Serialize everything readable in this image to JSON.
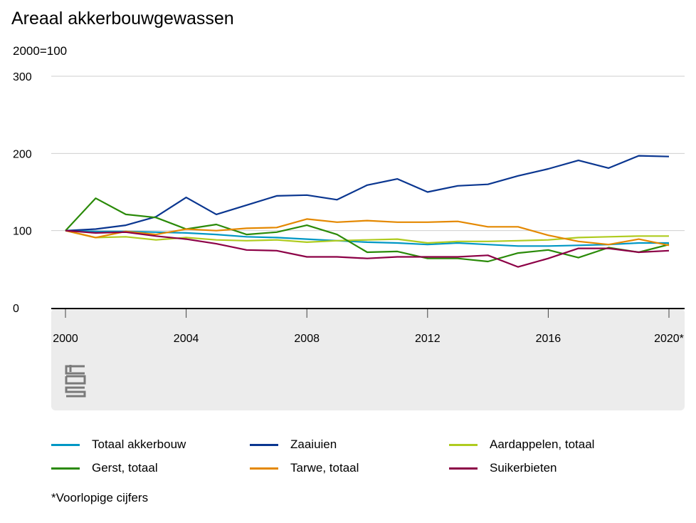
{
  "header": {
    "title": "Areaal akkerbouwgewassen",
    "unit": "2000=100"
  },
  "footnote": "*Voorlopige cijfers",
  "logo": {
    "name": "cbs-logo",
    "text": "cbs"
  },
  "colors": {
    "panel": "#ececec",
    "grid": "#cfcfcf",
    "axis": "#000000"
  },
  "chart_data": {
    "type": "line",
    "title": "Areaal akkerbouwgewassen",
    "ylabel": "2000=100",
    "xlabel": "",
    "ylim": [
      0,
      300
    ],
    "yticks": [
      0,
      100,
      200,
      300
    ],
    "x": [
      2000,
      2001,
      2002,
      2003,
      2004,
      2005,
      2006,
      2007,
      2008,
      2009,
      2010,
      2011,
      2012,
      2013,
      2014,
      2015,
      2016,
      2017,
      2018,
      2019,
      2020
    ],
    "xticks": [
      {
        "value": 2000,
        "label": "2000"
      },
      {
        "value": 2004,
        "label": "2004"
      },
      {
        "value": 2008,
        "label": "2008"
      },
      {
        "value": 2012,
        "label": "2012"
      },
      {
        "value": 2016,
        "label": "2016"
      },
      {
        "value": 2020,
        "label": "2020*"
      }
    ],
    "grid": true,
    "legend_position": "bottom",
    "series": [
      {
        "name": "Totaal akkerbouw",
        "color": "#0097c4",
        "values": [
          100,
          99,
          99,
          98,
          97,
          95,
          92,
          91,
          89,
          87,
          85,
          84,
          82,
          84,
          82,
          80,
          80,
          81,
          82,
          84,
          84
        ]
      },
      {
        "name": "Zaaiuien",
        "color": "#0a3690",
        "values": [
          100,
          102,
          107,
          118,
          143,
          121,
          133,
          145,
          146,
          140,
          159,
          167,
          150,
          158,
          160,
          171,
          180,
          191,
          181,
          197,
          196
        ]
      },
      {
        "name": "Aardappelen, totaal",
        "color": "#afcb1f",
        "values": [
          100,
          91,
          92,
          88,
          91,
          88,
          87,
          88,
          85,
          87,
          88,
          89,
          84,
          86,
          86,
          87,
          88,
          91,
          92,
          93,
          93
        ]
      },
      {
        "name": "Gerst, totaal",
        "color": "#2a8a08",
        "values": [
          100,
          142,
          121,
          117,
          102,
          108,
          95,
          98,
          107,
          95,
          72,
          73,
          64,
          64,
          60,
          71,
          75,
          65,
          78,
          72,
          82
        ]
      },
      {
        "name": "Tarwe, totaal",
        "color": "#e48800",
        "values": [
          100,
          91,
          99,
          95,
          102,
          100,
          103,
          104,
          115,
          111,
          113,
          111,
          111,
          112,
          105,
          105,
          94,
          86,
          82,
          89,
          81
        ]
      },
      {
        "name": "Suikerbieten",
        "color": "#8c0046",
        "values": [
          100,
          97,
          98,
          93,
          89,
          83,
          75,
          74,
          66,
          66,
          64,
          66,
          66,
          66,
          68,
          53,
          64,
          77,
          77,
          72,
          74
        ]
      }
    ]
  }
}
